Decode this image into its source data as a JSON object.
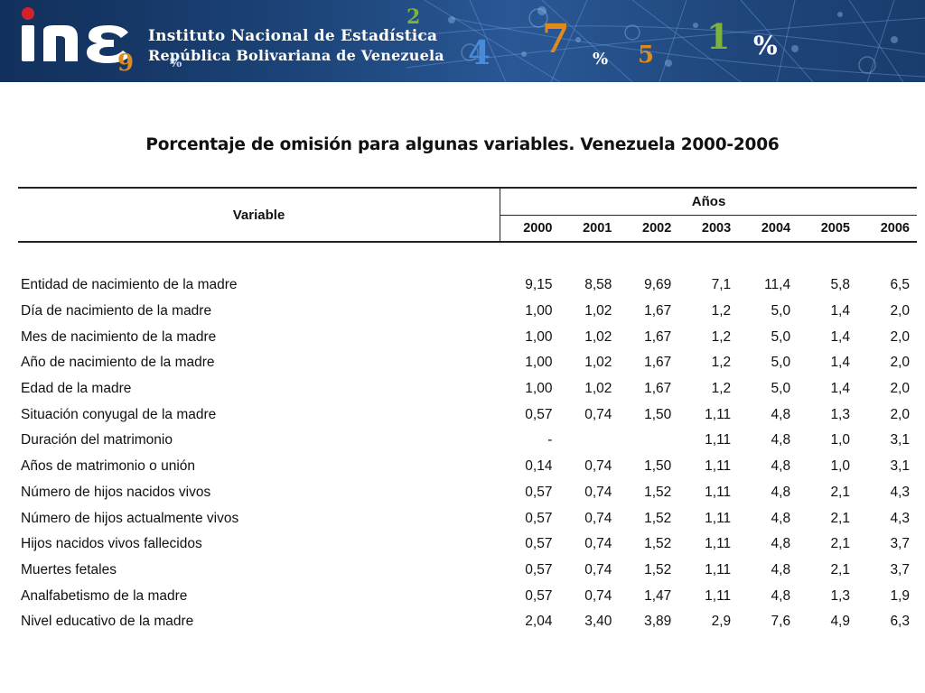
{
  "banner": {
    "institution": "Instituto Nacional de Estadística",
    "subtitle": "República Bolivariana de Venezuela",
    "logo_text": "ine",
    "logo_icon": "ine-logo-icon",
    "decorative_glyphs": [
      "9",
      "%",
      "4",
      "7",
      "%",
      "5",
      "1",
      "%",
      "2"
    ],
    "colors": {
      "background": "#1a4276",
      "accent_red": "#d2232a",
      "accent_orange": "#e08a1e",
      "accent_green": "#7bb33d",
      "accent_blue": "#4a8bd8"
    }
  },
  "title": "Porcentaje de omisión para algunas variables. Venezuela 2000-2006",
  "table": {
    "header_variable": "Variable",
    "header_years": "Años",
    "years": [
      "2000",
      "2001",
      "2002",
      "2003",
      "2004",
      "2005",
      "2006"
    ],
    "rows": [
      {
        "variable": "Entidad de nacimiento de la madre",
        "values": [
          "9,15",
          "8,58",
          "9,69",
          "7,1",
          "11,4",
          "5,8",
          "6,5"
        ]
      },
      {
        "variable": "Día de nacimiento de la madre",
        "values": [
          "1,00",
          "1,02",
          "1,67",
          "1,2",
          "5,0",
          "1,4",
          "2,0"
        ]
      },
      {
        "variable": "Mes de nacimiento de la madre",
        "values": [
          "1,00",
          "1,02",
          "1,67",
          "1,2",
          "5,0",
          "1,4",
          "2,0"
        ]
      },
      {
        "variable": "Año  de nacimiento de la madre",
        "values": [
          "1,00",
          "1,02",
          "1,67",
          "1,2",
          "5,0",
          "1,4",
          "2,0"
        ]
      },
      {
        "variable": "Edad de la madre",
        "values": [
          "1,00",
          "1,02",
          "1,67",
          "1,2",
          "5,0",
          "1,4",
          "2,0"
        ]
      },
      {
        "variable": "Situación conyugal de la madre",
        "values": [
          "0,57",
          "0,74",
          "1,50",
          "1,11",
          "4,8",
          "1,3",
          "2,0"
        ]
      },
      {
        "variable": "Duración del matrimonio",
        "values": [
          "-",
          "",
          "",
          "1,11",
          "4,8",
          "1,0",
          "3,1"
        ]
      },
      {
        "variable": "Años de matrimonio o unión",
        "values": [
          "0,14",
          "0,74",
          "1,50",
          "1,11",
          "4,8",
          "1,0",
          "3,1"
        ]
      },
      {
        "variable": "Número de hijos nacidos vivos",
        "values": [
          "0,57",
          "0,74",
          "1,52",
          "1,11",
          "4,8",
          "2,1",
          "4,3"
        ]
      },
      {
        "variable": "Número de hijos actualmente vivos",
        "values": [
          "0,57",
          "0,74",
          "1,52",
          "1,11",
          "4,8",
          "2,1",
          "4,3"
        ]
      },
      {
        "variable": "Hijos nacidos vivos fallecidos",
        "values": [
          "0,57",
          "0,74",
          "1,52",
          "1,11",
          "4,8",
          "2,1",
          "3,7"
        ]
      },
      {
        "variable": "Muertes fetales",
        "values": [
          "0,57",
          "0,74",
          "1,52",
          "1,11",
          "4,8",
          "2,1",
          "3,7"
        ]
      },
      {
        "variable": "Analfabetismo de la madre",
        "values": [
          "0,57",
          "0,74",
          "1,47",
          "1,11",
          "4,8",
          "1,3",
          "1,9"
        ]
      },
      {
        "variable": "Nivel educativo de la madre",
        "values": [
          "2,04",
          "3,40",
          "3,89",
          "2,9",
          "7,6",
          "4,9",
          "6,3"
        ]
      }
    ]
  }
}
